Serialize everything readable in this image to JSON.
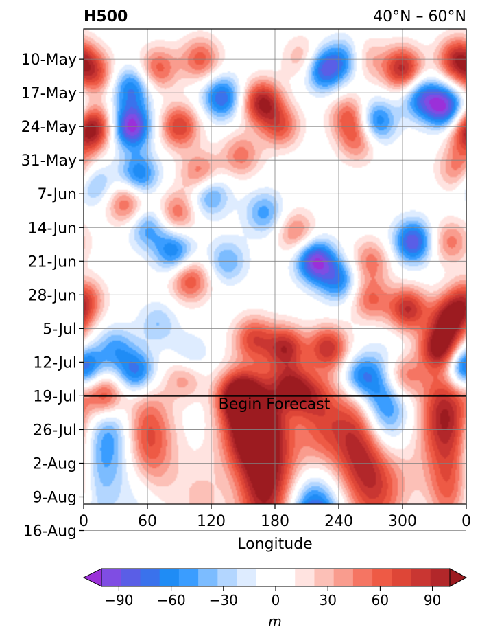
{
  "chart_data": {
    "type": "heatmap",
    "title_left": "H500",
    "title_right": "40°N – 60°N",
    "xlabel": "Longitude",
    "x_ticks": [
      "0",
      "60",
      "120",
      "180",
      "240",
      "300",
      "0"
    ],
    "x_tick_values": [
      0,
      60,
      120,
      180,
      240,
      300,
      360
    ],
    "xlim": [
      0,
      360
    ],
    "y_ticks": [
      "10-May",
      "17-May",
      "24-May",
      "31-May",
      "7-Jun",
      "14-Jun",
      "21-Jun",
      "28-Jun",
      "5-Jul",
      "12-Jul",
      "19-Jul",
      "26-Jul",
      "2-Aug",
      "9-Aug",
      "16-Aug"
    ],
    "forecast_line": {
      "label": "Begin Forecast",
      "date": "19-Jul"
    },
    "grid": true,
    "colorbar": {
      "label": "m",
      "ticks": [
        "−90",
        "−60",
        "−30",
        "0",
        "30",
        "60",
        "90"
      ],
      "tick_values": [
        -90,
        -60,
        -30,
        0,
        30,
        60,
        90
      ],
      "range": [
        -105,
        105
      ],
      "step": 10,
      "colors": [
        "#9b30d9",
        "#7f4de3",
        "#5a5ee6",
        "#3a72ec",
        "#1f8cf5",
        "#3a9dff",
        "#7cbcff",
        "#b3d6ff",
        "#deecff",
        "#ffffff",
        "#ffffff",
        "#ffe3e0",
        "#fcc0b7",
        "#f99c8e",
        "#f57563",
        "#ee5a45",
        "#de4637",
        "#c93632",
        "#b2272a",
        "#9c1b20"
      ]
    },
    "anomalies": [
      {
        "lon": 10,
        "day": 3,
        "v": 60
      },
      {
        "lon": 10,
        "day": 14,
        "v": 70
      },
      {
        "lon": 45,
        "day": 6,
        "v": -60
      },
      {
        "lon": 45,
        "day": 14,
        "v": -95
      },
      {
        "lon": 52,
        "day": 24,
        "v": -60
      },
      {
        "lon": 70,
        "day": 2,
        "v": 55
      },
      {
        "lon": 90,
        "day": 14,
        "v": 70
      },
      {
        "lon": 88,
        "day": 32,
        "v": 50
      },
      {
        "lon": 110,
        "day": 0,
        "v": 55
      },
      {
        "lon": 110,
        "day": 24,
        "v": 55
      },
      {
        "lon": 100,
        "day": 46,
        "v": 60
      },
      {
        "lon": 130,
        "day": 8,
        "v": -70
      },
      {
        "lon": 148,
        "day": 20,
        "v": 45
      },
      {
        "lon": 168,
        "day": 9,
        "v": 90
      },
      {
        "lon": 185,
        "day": 14,
        "v": 55
      },
      {
        "lon": 208,
        "day": 0,
        "v": 40
      },
      {
        "lon": 225,
        "day": 2,
        "v": -80
      },
      {
        "lon": 250,
        "day": 0,
        "v": -60
      },
      {
        "lon": 250,
        "day": 12,
        "v": 55
      },
      {
        "lon": 258,
        "day": 17,
        "v": 45
      },
      {
        "lon": 262,
        "day": 0,
        "v": 50
      },
      {
        "lon": 275,
        "day": 13,
        "v": -65
      },
      {
        "lon": 300,
        "day": 2,
        "v": 85
      },
      {
        "lon": 318,
        "day": 8,
        "v": -60
      },
      {
        "lon": 340,
        "day": 10,
        "v": -85
      },
      {
        "lon": 352,
        "day": 0,
        "v": 80
      },
      {
        "lon": 360,
        "day": 16,
        "v": 45
      },
      {
        "lon": 352,
        "day": 23,
        "v": 45
      },
      {
        "lon": 10,
        "day": 26,
        "v": -40
      },
      {
        "lon": 118,
        "day": 28,
        "v": -55
      },
      {
        "lon": 40,
        "day": 30,
        "v": 55
      },
      {
        "lon": 85,
        "day": 40,
        "v": -60
      },
      {
        "lon": 60,
        "day": 35,
        "v": -45
      },
      {
        "lon": 200,
        "day": 36,
        "v": 45
      },
      {
        "lon": 170,
        "day": 32,
        "v": -45
      },
      {
        "lon": 218,
        "day": 42,
        "v": -90
      },
      {
        "lon": 240,
        "day": 46,
        "v": -55
      },
      {
        "lon": 270,
        "day": 42,
        "v": 45
      },
      {
        "lon": 310,
        "day": 38,
        "v": -80
      },
      {
        "lon": 345,
        "day": 38,
        "v": 45
      },
      {
        "lon": 0,
        "day": 50,
        "v": 60
      },
      {
        "lon": 30,
        "day": 60,
        "v": -40
      },
      {
        "lon": 20,
        "day": 70,
        "v": 75
      },
      {
        "lon": 190,
        "day": 60,
        "v": 80
      },
      {
        "lon": 195,
        "day": 68,
        "v": 70
      },
      {
        "lon": 270,
        "day": 50,
        "v": 50
      },
      {
        "lon": 305,
        "day": 52,
        "v": 80
      },
      {
        "lon": 345,
        "day": 54,
        "v": 90
      },
      {
        "lon": 335,
        "day": 60,
        "v": 95
      },
      {
        "lon": 230,
        "day": 60,
        "v": 75
      },
      {
        "lon": 160,
        "day": 58,
        "v": 60
      },
      {
        "lon": 145,
        "day": 70,
        "v": 80
      },
      {
        "lon": 150,
        "day": 76,
        "v": 85
      },
      {
        "lon": 95,
        "day": 66,
        "v": 40
      },
      {
        "lon": 60,
        "day": 78,
        "v": 60
      },
      {
        "lon": 70,
        "day": 55,
        "v": -30
      },
      {
        "lon": 25,
        "day": 78,
        "v": -45
      },
      {
        "lon": 50,
        "day": 65,
        "v": -65
      },
      {
        "lon": 100,
        "day": 62,
        "v": -30
      },
      {
        "lon": 260,
        "day": 66,
        "v": -55
      },
      {
        "lon": 282,
        "day": 72,
        "v": -65
      },
      {
        "lon": 300,
        "day": 66,
        "v": 55
      },
      {
        "lon": 340,
        "day": 74,
        "v": 90
      },
      {
        "lon": 358,
        "day": 64,
        "v": -85
      },
      {
        "lon": 255,
        "day": 78,
        "v": 60
      },
      {
        "lon": 225,
        "day": 76,
        "v": 50
      },
      {
        "lon": 135,
        "day": 42,
        "v": -40
      },
      {
        "lon": 212,
        "day": 70,
        "v": 40
      },
      {
        "lon": 170,
        "day": 76,
        "v": 80
      },
      {
        "lon": 10,
        "day": 88,
        "v": -25
      },
      {
        "lon": 70,
        "day": 86,
        "v": 18
      },
      {
        "lon": 110,
        "day": 92,
        "v": 22
      },
      {
        "lon": 55,
        "day": 92,
        "v": -22
      },
      {
        "lon": 170,
        "day": 88,
        "v": 55
      },
      {
        "lon": 170,
        "day": 95,
        "v": 35
      },
      {
        "lon": 195,
        "day": 84,
        "v": 25
      },
      {
        "lon": 215,
        "day": 96,
        "v": -75
      },
      {
        "lon": 225,
        "day": 103,
        "v": -45
      },
      {
        "lon": 230,
        "day": 112,
        "v": -25
      },
      {
        "lon": 268,
        "day": 86,
        "v": 55
      },
      {
        "lon": 280,
        "day": 92,
        "v": 25
      },
      {
        "lon": 300,
        "day": 88,
        "v": 20
      },
      {
        "lon": 315,
        "day": 98,
        "v": -15
      },
      {
        "lon": 345,
        "day": 90,
        "v": 60
      },
      {
        "lon": 355,
        "day": 102,
        "v": -25
      },
      {
        "lon": 5,
        "day": 108,
        "v": -25
      },
      {
        "lon": 60,
        "day": 110,
        "v": 35
      },
      {
        "lon": 145,
        "day": 104,
        "v": 15
      },
      {
        "lon": 260,
        "day": 108,
        "v": 15
      }
    ]
  }
}
